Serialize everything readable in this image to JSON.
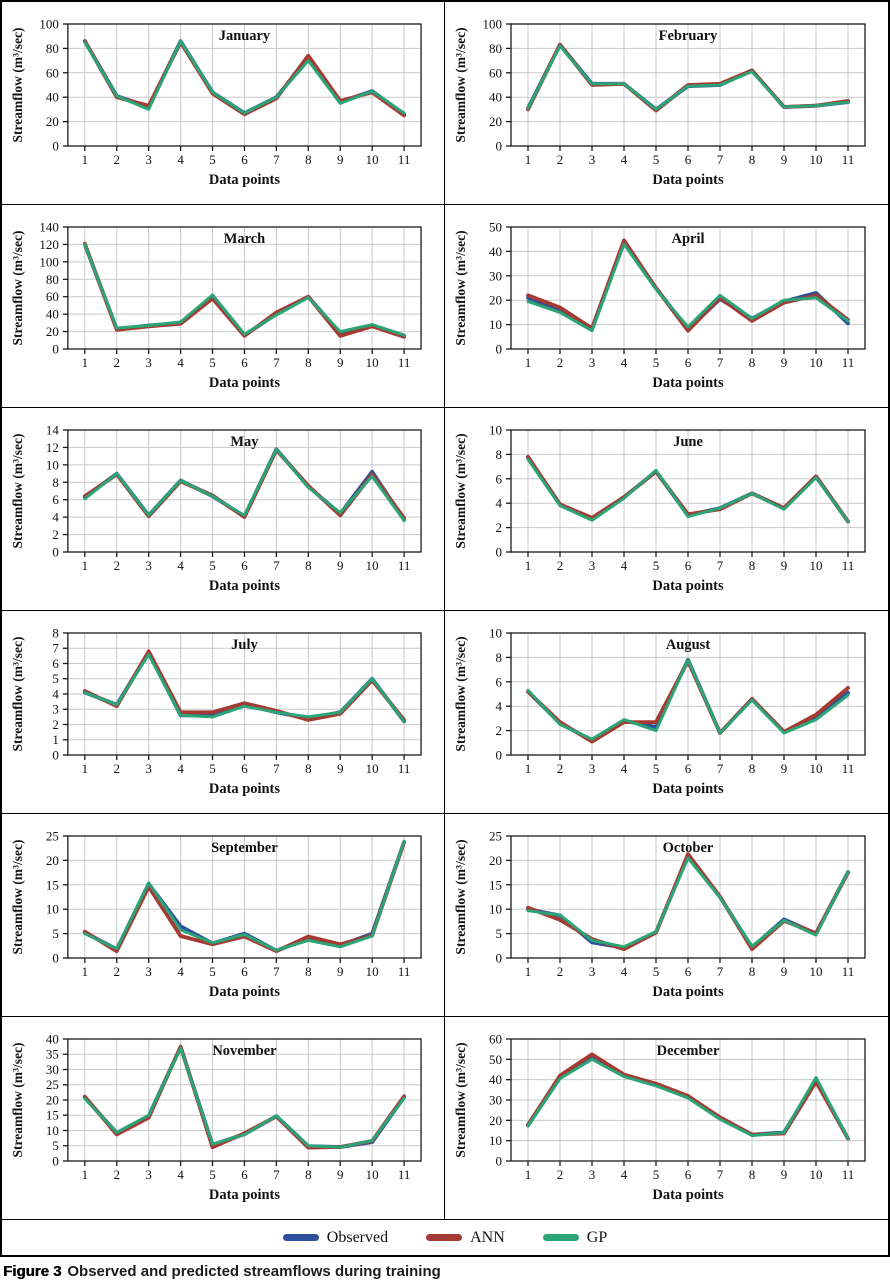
{
  "figure": {
    "caption_label": "Figure 3",
    "caption_text": "Observed and predicted streamflows during training"
  },
  "legend": [
    {
      "name": "Observed",
      "color": "#2c4f9e"
    },
    {
      "name": "ANN",
      "color": "#a63a32"
    },
    {
      "name": "GP",
      "color": "#2ba477"
    }
  ],
  "style_colors": {
    "grid_line": "#c9c9c9",
    "axis_box": "#1a1a1a",
    "text": "#111111"
  },
  "chart_data": [
    {
      "type": "line",
      "title": "January",
      "xlabel": "Data points",
      "ylabel": "Streamflow (m³/sec)",
      "x": [
        1,
        2,
        3,
        4,
        5,
        6,
        7,
        8,
        9,
        10,
        11
      ],
      "ylim": [
        0,
        100
      ],
      "ytick": 20,
      "grid": true,
      "legend_position": "bottom",
      "series": [
        {
          "name": "Observed",
          "values": [
            86,
            41,
            32,
            86,
            44,
            27,
            40,
            72,
            36,
            45,
            26
          ]
        },
        {
          "name": "ANN",
          "values": [
            86,
            40,
            33,
            85,
            43,
            26,
            39,
            74,
            37,
            44,
            25
          ]
        },
        {
          "name": "GP",
          "values": [
            85,
            41,
            30,
            86,
            44,
            27,
            40,
            70,
            35,
            45,
            27
          ]
        }
      ]
    },
    {
      "type": "line",
      "title": "February",
      "xlabel": "Data points",
      "ylabel": "Streamflow (m³/sec)",
      "x": [
        1,
        2,
        3,
        4,
        5,
        6,
        7,
        8,
        9,
        10,
        11
      ],
      "ylim": [
        0,
        100
      ],
      "ytick": 20,
      "grid": true,
      "legend_position": "bottom",
      "series": [
        {
          "name": "Observed",
          "values": [
            31,
            83,
            51,
            51,
            30,
            49,
            50,
            62,
            32,
            33,
            36
          ]
        },
        {
          "name": "ANN",
          "values": [
            30,
            83,
            50,
            51,
            29,
            50,
            51,
            62,
            32,
            33,
            37
          ]
        },
        {
          "name": "GP",
          "values": [
            31,
            82,
            51,
            51,
            30,
            49,
            50,
            61,
            32,
            33,
            36
          ]
        }
      ]
    },
    {
      "type": "line",
      "title": "March",
      "xlabel": "Data points",
      "ylabel": "Streamflow (m³/sec)",
      "x": [
        1,
        2,
        3,
        4,
        5,
        6,
        7,
        8,
        9,
        10,
        11
      ],
      "ylim": [
        0,
        140
      ],
      "ytick": 20,
      "grid": true,
      "legend_position": "bottom",
      "series": [
        {
          "name": "Observed",
          "values": [
            120,
            23,
            27,
            30,
            61,
            16,
            40,
            60,
            18,
            27,
            15
          ]
        },
        {
          "name": "ANN",
          "values": [
            121,
            22,
            26,
            29,
            58,
            15,
            42,
            60,
            15,
            26,
            14
          ]
        },
        {
          "name": "GP",
          "values": [
            120,
            24,
            27,
            31,
            62,
            17,
            39,
            59,
            20,
            28,
            16
          ]
        }
      ]
    },
    {
      "type": "line",
      "title": "April",
      "xlabel": "Data points",
      "ylabel": "Streamflow (m³/sec)",
      "x": [
        1,
        2,
        3,
        4,
        5,
        6,
        7,
        8,
        9,
        10,
        11
      ],
      "ylim": [
        0,
        50
      ],
      "ytick": 10,
      "grid": true,
      "legend_position": "bottom",
      "series": [
        {
          "name": "Observed",
          "values": [
            21,
            16,
            8,
            44,
            25,
            8,
            20.5,
            12.5,
            19.5,
            23,
            10.5
          ]
        },
        {
          "name": "ANN",
          "values": [
            22,
            17,
            8.5,
            44.5,
            25,
            7.5,
            21,
            11.5,
            19,
            22,
            12
          ]
        },
        {
          "name": "GP",
          "values": [
            19.5,
            15,
            7.5,
            43,
            24.5,
            9,
            22,
            12.5,
            20,
            21,
            11.5
          ]
        }
      ]
    },
    {
      "type": "line",
      "title": "May",
      "xlabel": "Data points",
      "ylabel": "Streamflow (m³/sec)",
      "x": [
        1,
        2,
        3,
        4,
        5,
        6,
        7,
        8,
        9,
        10,
        11
      ],
      "ylim": [
        0,
        14
      ],
      "ytick": 2,
      "grid": true,
      "legend_position": "bottom",
      "series": [
        {
          "name": "Observed",
          "values": [
            6.3,
            9.0,
            4.2,
            8.2,
            6.4,
            4.1,
            11.8,
            7.5,
            4.4,
            9.2,
            3.7
          ]
        },
        {
          "name": "ANN",
          "values": [
            6.4,
            8.9,
            4.1,
            8.1,
            6.5,
            4.0,
            11.7,
            7.6,
            4.2,
            8.9,
            3.9
          ]
        },
        {
          "name": "GP",
          "values": [
            6.1,
            9.0,
            4.2,
            8.2,
            6.4,
            4.2,
            11.8,
            7.4,
            4.5,
            8.7,
            3.6
          ]
        }
      ]
    },
    {
      "type": "line",
      "title": "June",
      "xlabel": "Data points",
      "ylabel": "Streamflow (m³/sec)",
      "x": [
        1,
        2,
        3,
        4,
        5,
        6,
        7,
        8,
        9,
        10,
        11
      ],
      "ylim": [
        0,
        10
      ],
      "ytick": 2,
      "grid": true,
      "legend_position": "bottom",
      "series": [
        {
          "name": "Observed",
          "values": [
            7.7,
            3.9,
            2.7,
            4.5,
            6.6,
            3.0,
            3.6,
            4.8,
            3.6,
            6.2,
            2.5
          ]
        },
        {
          "name": "ANN",
          "values": [
            7.8,
            3.9,
            2.8,
            4.5,
            6.6,
            3.1,
            3.5,
            4.8,
            3.6,
            6.2,
            2.5
          ]
        },
        {
          "name": "GP",
          "values": [
            7.6,
            3.8,
            2.6,
            4.4,
            6.7,
            2.9,
            3.6,
            4.8,
            3.5,
            6.1,
            2.5
          ]
        }
      ]
    },
    {
      "type": "line",
      "title": "July",
      "xlabel": "Data points",
      "ylabel": "Streamflow (m³/sec)",
      "x": [
        1,
        2,
        3,
        4,
        5,
        6,
        7,
        8,
        9,
        10,
        11
      ],
      "ylim": [
        0,
        8
      ],
      "ytick": 1,
      "grid": true,
      "legend_position": "bottom",
      "series": [
        {
          "name": "Observed",
          "values": [
            4.1,
            3.3,
            6.7,
            2.6,
            2.6,
            3.3,
            2.8,
            2.4,
            2.8,
            5.0,
            2.2
          ]
        },
        {
          "name": "ANN",
          "values": [
            4.2,
            3.2,
            6.8,
            2.8,
            2.8,
            3.4,
            2.9,
            2.3,
            2.7,
            4.9,
            2.3
          ]
        },
        {
          "name": "GP",
          "values": [
            4.1,
            3.3,
            6.6,
            2.6,
            2.5,
            3.2,
            2.8,
            2.5,
            2.8,
            5.0,
            2.2
          ]
        }
      ]
    },
    {
      "type": "line",
      "title": "August",
      "xlabel": "Data points",
      "ylabel": "Streamflow (m³/sec)",
      "x": [
        1,
        2,
        3,
        4,
        5,
        6,
        7,
        8,
        9,
        10,
        11
      ],
      "ylim": [
        0,
        10
      ],
      "ytick": 2,
      "grid": true,
      "legend_position": "bottom",
      "series": [
        {
          "name": "Observed",
          "values": [
            5.2,
            2.6,
            1.2,
            2.8,
            2.3,
            7.8,
            1.8,
            4.6,
            1.9,
            3.0,
            5.1
          ]
        },
        {
          "name": "ANN",
          "values": [
            5.2,
            2.7,
            1.1,
            2.7,
            2.7,
            7.7,
            1.8,
            4.6,
            1.9,
            3.3,
            5.5
          ]
        },
        {
          "name": "GP",
          "values": [
            5.3,
            2.5,
            1.3,
            2.9,
            2.0,
            7.8,
            1.8,
            4.5,
            1.8,
            2.9,
            4.9
          ]
        }
      ]
    },
    {
      "type": "line",
      "title": "September",
      "xlabel": "Data points",
      "ylabel": "Streamflow (m³/sec)",
      "x": [
        1,
        2,
        3,
        4,
        5,
        6,
        7,
        8,
        9,
        10,
        11
      ],
      "ylim": [
        0,
        25
      ],
      "ytick": 5,
      "grid": true,
      "legend_position": "bottom",
      "series": [
        {
          "name": "Observed",
          "values": [
            5.2,
            1.8,
            15.2,
            6.5,
            3.0,
            5.0,
            1.5,
            3.9,
            2.6,
            5.0,
            23.8
          ]
        },
        {
          "name": "ANN",
          "values": [
            5.4,
            1.4,
            14.6,
            4.5,
            2.8,
            4.4,
            1.4,
            4.4,
            2.8,
            4.6,
            23.7
          ]
        },
        {
          "name": "GP",
          "values": [
            5.0,
            1.9,
            15.4,
            5.8,
            3.1,
            4.8,
            1.6,
            3.6,
            2.3,
            4.5,
            23.9
          ]
        }
      ]
    },
    {
      "type": "line",
      "title": "October",
      "xlabel": "Data points",
      "ylabel": "Streamflow (m³/sec)",
      "x": [
        1,
        2,
        3,
        4,
        5,
        6,
        7,
        8,
        9,
        10,
        11
      ],
      "ylim": [
        0,
        25
      ],
      "ytick": 5,
      "grid": true,
      "legend_position": "bottom",
      "series": [
        {
          "name": "Observed",
          "values": [
            10.0,
            8.7,
            3.2,
            2.1,
            5.3,
            20.9,
            12.5,
            2.2,
            7.9,
            5.0,
            17.6
          ]
        },
        {
          "name": "ANN",
          "values": [
            10.3,
            7.8,
            3.9,
            1.8,
            5.2,
            21.3,
            12.6,
            1.8,
            7.6,
            5.1,
            17.5
          ]
        },
        {
          "name": "GP",
          "values": [
            9.7,
            8.8,
            3.6,
            2.3,
            5.4,
            20.5,
            12.4,
            2.4,
            7.7,
            4.7,
            17.7
          ]
        }
      ]
    },
    {
      "type": "line",
      "title": "November",
      "xlabel": "Data points",
      "ylabel": "Streamflow (m³/sec)",
      "x": [
        1,
        2,
        3,
        4,
        5,
        6,
        7,
        8,
        9,
        10,
        11
      ],
      "ylim": [
        0,
        40
      ],
      "ytick": 5,
      "grid": true,
      "legend_position": "bottom",
      "series": [
        {
          "name": "Observed",
          "values": [
            20.8,
            9.2,
            14.8,
            37.3,
            5.3,
            8.8,
            14.7,
            4.9,
            4.6,
            6.2,
            20.9
          ]
        },
        {
          "name": "ANN",
          "values": [
            21.1,
            8.7,
            14.2,
            37.5,
            4.5,
            9.1,
            14.6,
            4.4,
            4.6,
            6.6,
            21.2
          ]
        },
        {
          "name": "GP",
          "values": [
            20.5,
            9.3,
            15.0,
            37.0,
            5.5,
            8.7,
            14.8,
            5.0,
            4.5,
            6.7,
            20.6
          ]
        }
      ]
    },
    {
      "type": "line",
      "title": "December",
      "xlabel": "Data points",
      "ylabel": "Streamflow (m³/sec)",
      "x": [
        1,
        2,
        3,
        4,
        5,
        6,
        7,
        8,
        9,
        10,
        11
      ],
      "ylim": [
        0,
        60
      ],
      "ytick": 10,
      "grid": true,
      "legend_position": "bottom",
      "series": [
        {
          "name": "Observed",
          "values": [
            17.5,
            41,
            51.5,
            42,
            37.5,
            31.5,
            21,
            13,
            14,
            40,
            11
          ]
        },
        {
          "name": "ANN",
          "values": [
            17.8,
            42,
            52.5,
            42.5,
            38,
            32,
            21.5,
            13,
            13.5,
            39,
            11
          ]
        },
        {
          "name": "GP",
          "values": [
            17.2,
            40.5,
            50,
            41.5,
            37,
            31,
            20.5,
            12.5,
            14,
            41,
            11
          ]
        }
      ]
    }
  ]
}
